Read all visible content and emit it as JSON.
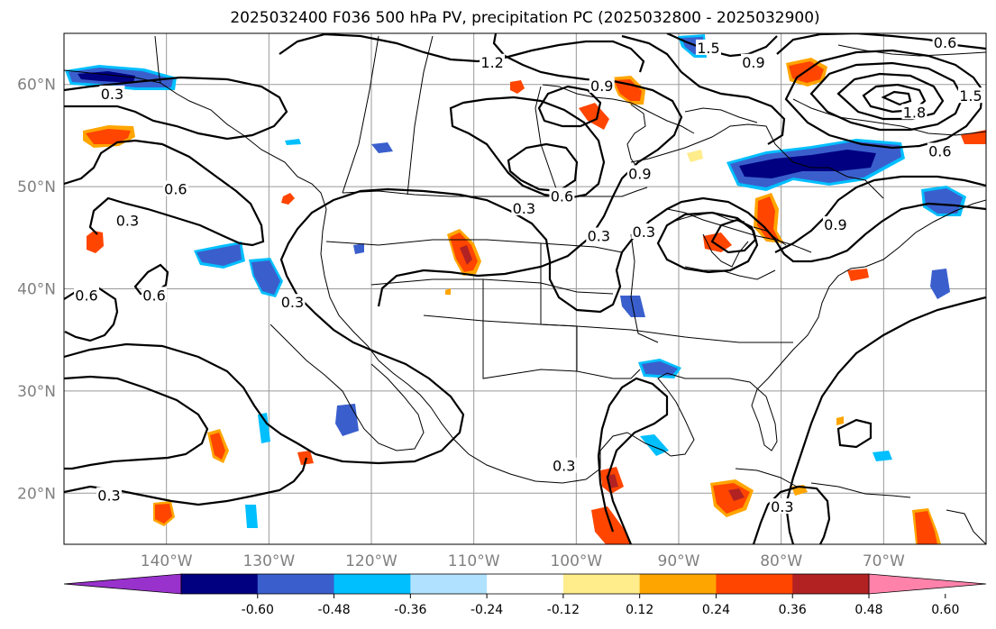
{
  "title": "2025032400 F036 500 hPa PV, precipitation PC (2025032800 - 2025032900)",
  "map": {
    "projection": "cylindrical",
    "lon_range": [
      -150,
      -60
    ],
    "lat_range": [
      15,
      65
    ],
    "gridlines": true,
    "lat_ticks": [
      {
        "value": 20,
        "label": "20°N"
      },
      {
        "value": 30,
        "label": "30°N"
      },
      {
        "value": 40,
        "label": "40°N"
      },
      {
        "value": 50,
        "label": "50°N"
      },
      {
        "value": 60,
        "label": "60°N"
      }
    ],
    "lon_ticks": [
      {
        "value": -140,
        "label": "140°W"
      },
      {
        "value": -130,
        "label": "130°W"
      },
      {
        "value": -120,
        "label": "120°W"
      },
      {
        "value": -110,
        "label": "110°W"
      },
      {
        "value": -100,
        "label": "100°W"
      },
      {
        "value": -90,
        "label": "90°W"
      },
      {
        "value": -80,
        "label": "80°W"
      },
      {
        "value": -70,
        "label": "70°W"
      }
    ],
    "pv_contour_labels": [
      {
        "text": "0.3",
        "lon": -145.3,
        "lat": 59.1
      },
      {
        "text": "0.3",
        "lon": -145.6,
        "lat": 19.8
      },
      {
        "text": "0.6",
        "lon": -147.8,
        "lat": 39.4
      },
      {
        "text": "0.6",
        "lon": -141.2,
        "lat": 39.4
      },
      {
        "text": "0.3",
        "lon": -143.8,
        "lat": 46.7
      },
      {
        "text": "0.6",
        "lon": -139.1,
        "lat": 49.8
      },
      {
        "text": "0.3",
        "lon": -127.7,
        "lat": 38.7
      },
      {
        "text": "0.3",
        "lon": -105.1,
        "lat": 47.9
      },
      {
        "text": "0.6",
        "lon": -101.4,
        "lat": 49.1
      },
      {
        "text": "0.3",
        "lon": -97.8,
        "lat": 45.2
      },
      {
        "text": "0.9",
        "lon": -93.8,
        "lat": 51.3
      },
      {
        "text": "1.2",
        "lon": -108.2,
        "lat": 62.2
      },
      {
        "text": "0.9",
        "lon": -97.5,
        "lat": 59.9
      },
      {
        "text": "1.5",
        "lon": -87.1,
        "lat": 63.6
      },
      {
        "text": "0.9",
        "lon": -82.7,
        "lat": 62.2
      },
      {
        "text": "0.6",
        "lon": -64.0,
        "lat": 64.1
      },
      {
        "text": "1.5",
        "lon": -61.5,
        "lat": 58.9
      },
      {
        "text": "1.8",
        "lon": -67.0,
        "lat": 57.3
      },
      {
        "text": "0.6",
        "lon": -64.5,
        "lat": 53.5
      },
      {
        "text": "0.9",
        "lon": -74.7,
        "lat": 46.3
      },
      {
        "text": "0.3",
        "lon": -93.4,
        "lat": 45.6
      },
      {
        "text": "0.3",
        "lon": -101.2,
        "lat": 22.7
      },
      {
        "text": "0.3",
        "lon": -79.9,
        "lat": 18.7
      }
    ],
    "precip_anomaly_colors": {
      "pos_weak": "#ffa500",
      "pos_mid": "#ff4500",
      "pos_strong": "#b22222",
      "neg_weak": "#00bfff",
      "neg_mid": "#3a5fcd",
      "neg_strong": "#000080"
    }
  },
  "colorbar": {
    "extend": "both",
    "ticks": [
      "-0.60",
      "-0.48",
      "-0.36",
      "-0.24",
      "-0.12",
      "0.12",
      "0.24",
      "0.36",
      "0.48",
      "0.60"
    ],
    "colors": [
      "#9932cc",
      "#000080",
      "#3a5fcd",
      "#00bfff",
      "#b0e2ff",
      "#ffffff",
      "#ffec8b",
      "#ffa500",
      "#ff4500",
      "#b22222",
      "#ff82ab"
    ]
  }
}
